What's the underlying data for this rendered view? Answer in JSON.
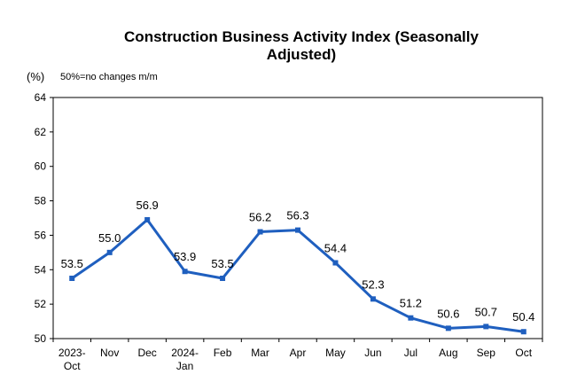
{
  "chart_data": {
    "type": "line",
    "title_line1": "Construction Business Activity Index (Seasonally",
    "title_line2": "Adjusted)",
    "unit_label": "(%)",
    "note": "50%=no changes m/m",
    "categories": [
      [
        "2023-",
        "Oct"
      ],
      [
        "Nov"
      ],
      [
        "Dec"
      ],
      [
        "2024-",
        "Jan"
      ],
      [
        "Feb"
      ],
      [
        "Mar"
      ],
      [
        "Apr"
      ],
      [
        "May"
      ],
      [
        "Jun"
      ],
      [
        "Jul"
      ],
      [
        "Aug"
      ],
      [
        "Sep"
      ],
      [
        "Oct"
      ]
    ],
    "values": [
      53.5,
      55.0,
      56.9,
      53.9,
      53.5,
      56.2,
      56.3,
      54.4,
      52.3,
      51.2,
      50.6,
      50.7,
      50.4
    ],
    "data_labels": [
      "53.5",
      "55.0",
      "56.9",
      "53.9",
      "53.5",
      "56.2",
      "56.3",
      "54.4",
      "52.3",
      "51.2",
      "50.6",
      "50.7",
      "50.4"
    ],
    "ylim": [
      50,
      64
    ],
    "yticks": [
      50,
      52,
      54,
      56,
      58,
      60,
      62,
      64
    ],
    "line_color": "#1F5FBF",
    "grid": false
  }
}
